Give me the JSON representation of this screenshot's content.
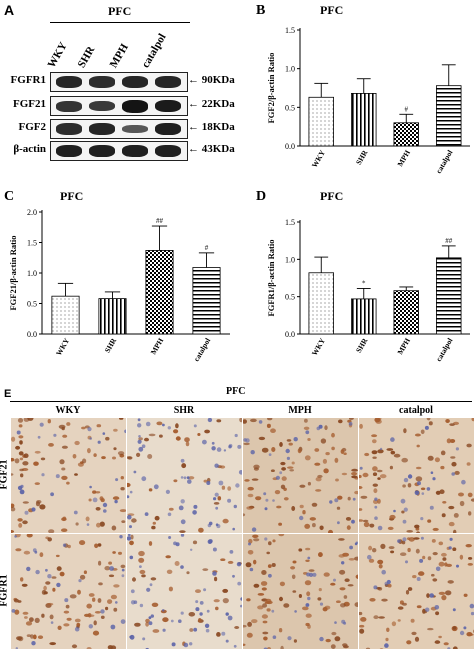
{
  "panel_a": {
    "letter": "A",
    "title": "PFC",
    "lanes": [
      "WKY",
      "SHR",
      "MPH",
      "catalpol"
    ],
    "rows": [
      {
        "protein": "FGFR1",
        "size": "90KDa",
        "intensities": [
          0.85,
          0.8,
          0.85,
          0.85
        ]
      },
      {
        "protein": "FGF21",
        "size": "22KDa",
        "intensities": [
          0.75,
          0.7,
          1.0,
          0.95
        ]
      },
      {
        "protein": "FGF2",
        "size": "18KDa",
        "intensities": [
          0.8,
          0.85,
          0.45,
          0.9
        ]
      },
      {
        "protein": "β-actin",
        "size": "43KDa",
        "intensities": [
          0.9,
          0.9,
          0.9,
          0.9
        ]
      }
    ]
  },
  "chart_data": [
    {
      "panel": "B",
      "type": "bar",
      "title": "PFC",
      "ylabel": "FGF2/β-actin Ratio",
      "categories": [
        "WKY",
        "SHR",
        "MPH",
        "catalpol"
      ],
      "values": [
        0.63,
        0.68,
        0.3,
        0.78
      ],
      "errors": [
        0.18,
        0.19,
        0.11,
        0.27
      ],
      "significance": [
        "",
        "",
        "#",
        ""
      ],
      "ylim": [
        0,
        1.5
      ],
      "yticks": [
        0.0,
        0.5,
        1.0,
        1.5
      ],
      "patterns": [
        "dots",
        "vlines",
        "checker",
        "hlines"
      ]
    },
    {
      "panel": "C",
      "type": "bar",
      "title": "PFC",
      "ylabel": "FGF21/β-actin Ratio",
      "categories": [
        "WKY",
        "SHR",
        "MPH",
        "catalpol"
      ],
      "values": [
        0.62,
        0.58,
        1.37,
        1.09
      ],
      "errors": [
        0.21,
        0.11,
        0.4,
        0.24
      ],
      "significance": [
        "",
        "",
        "##",
        "#"
      ],
      "ylim": [
        0,
        2.0
      ],
      "yticks": [
        0.0,
        0.5,
        1.0,
        1.5,
        2.0
      ],
      "patterns": [
        "dots",
        "vlines",
        "checker",
        "hlines"
      ]
    },
    {
      "panel": "D",
      "type": "bar",
      "title": "PFC",
      "ylabel": "FGFR1/β-actin Ratio",
      "categories": [
        "WKY",
        "SHR",
        "MPH",
        "catalpol"
      ],
      "values": [
        0.82,
        0.47,
        0.58,
        1.02
      ],
      "errors": [
        0.21,
        0.14,
        0.05,
        0.16
      ],
      "significance": [
        "",
        "*",
        "",
        "##"
      ],
      "ylim": [
        0,
        1.5
      ],
      "yticks": [
        0.0,
        0.5,
        1.0,
        1.5
      ],
      "patterns": [
        "dots",
        "vlines",
        "checker",
        "hlines"
      ]
    }
  ],
  "panel_e": {
    "letter": "E",
    "title": "PFC",
    "columns": [
      "WKY",
      "SHR",
      "MPH",
      "catalpol"
    ],
    "rows": [
      "FGF21",
      "FGFR1"
    ]
  }
}
